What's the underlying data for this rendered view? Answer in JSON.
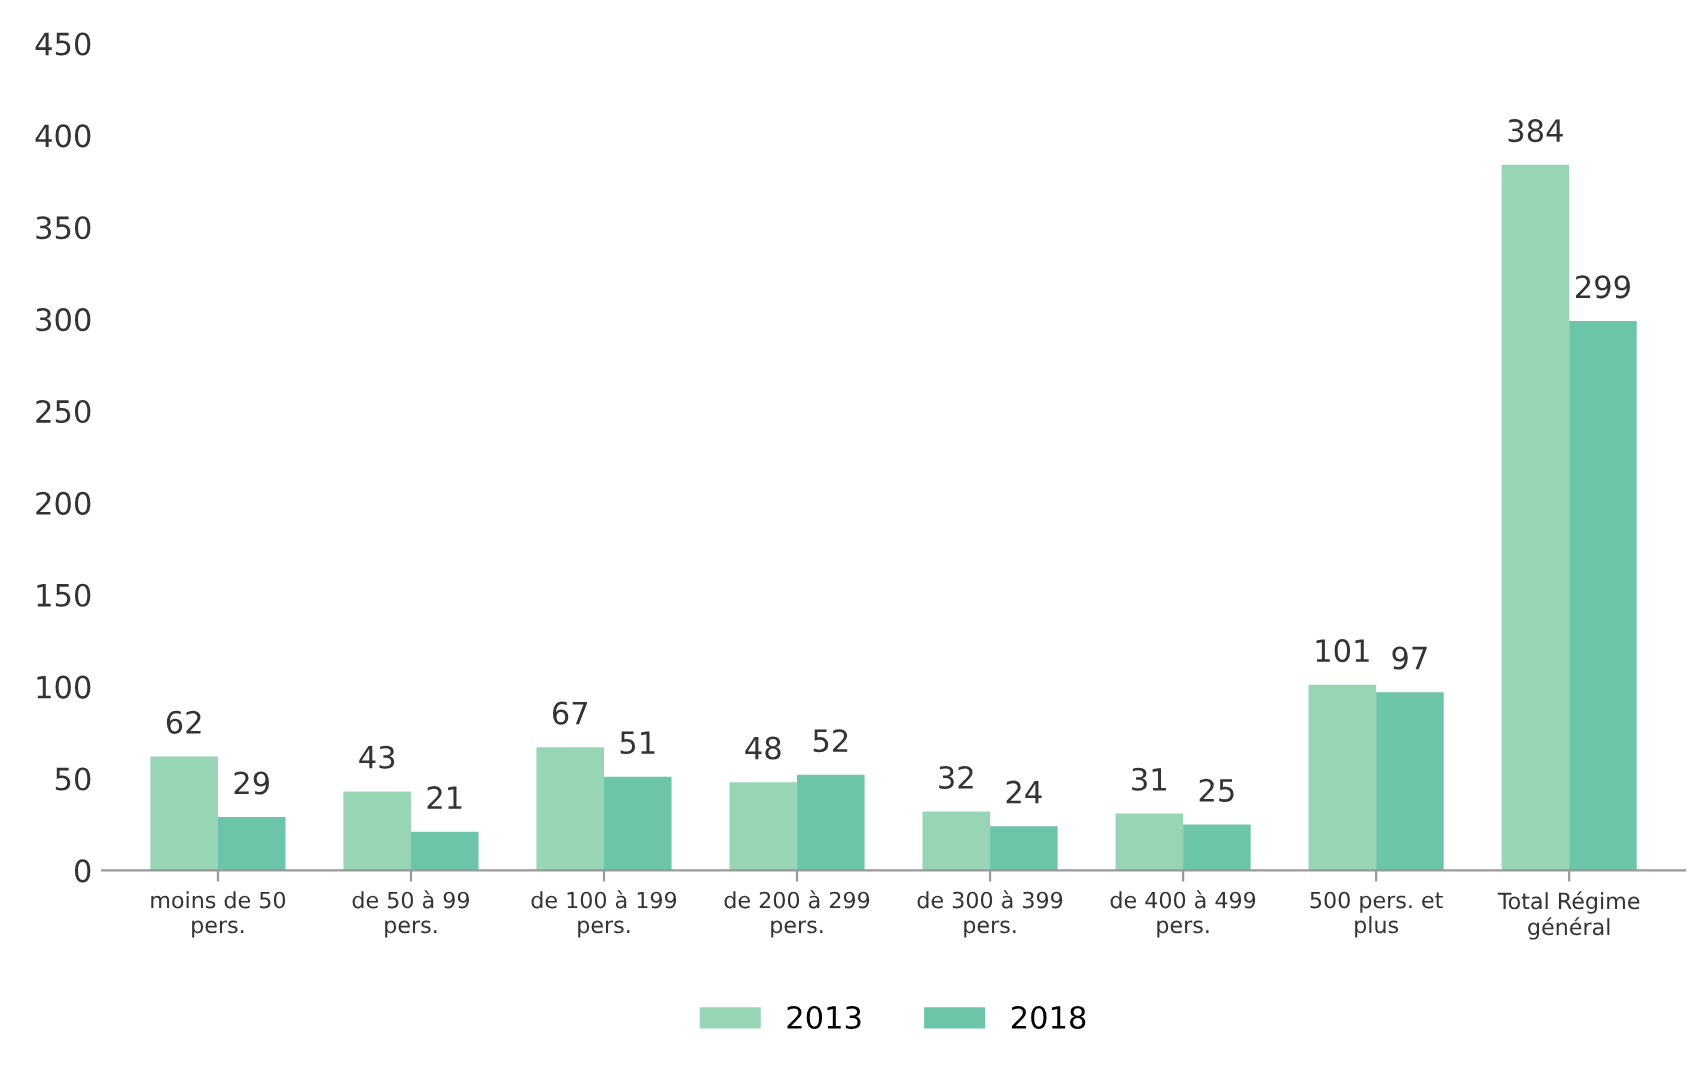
{
  "chart_data": {
    "type": "bar",
    "categories": [
      "moins de 50\npers.",
      "de 50 à 99\npers.",
      "de 100 à 199\npers.",
      "de 200 à 299\npers.",
      "de 300 à 399\npers.",
      "de 400 à 499\npers.",
      "500 pers. et\nplus",
      "Total Régime\ngénéral"
    ],
    "series": [
      {
        "name": "2013",
        "color": "#98d5b5",
        "values": [
          62,
          43,
          67,
          48,
          32,
          31,
          101,
          384
        ]
      },
      {
        "name": "2018",
        "color": "#6cc5a9",
        "values": [
          29,
          21,
          51,
          52,
          24,
          25,
          97,
          299
        ]
      }
    ],
    "ylim": [
      0,
      450
    ],
    "yticks": [
      0,
      50,
      100,
      150,
      200,
      250,
      300,
      350,
      400,
      450
    ],
    "data_labels": true,
    "grid": false,
    "legend": "bottom"
  }
}
